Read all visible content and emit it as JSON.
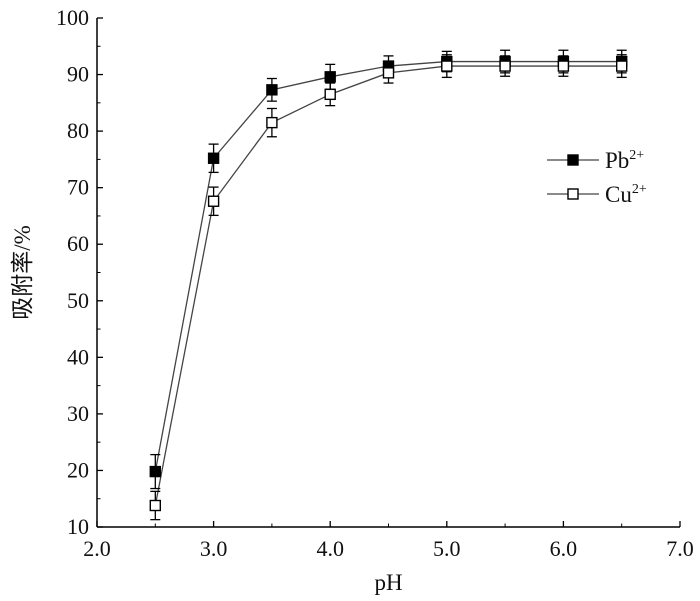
{
  "chart_data": {
    "type": "scatter",
    "title": "",
    "xlabel": "pH",
    "ylabel": "吸附率/%",
    "xlim": [
      2.0,
      7.0
    ],
    "ylim": [
      10,
      100
    ],
    "x_ticks": [
      "2.0",
      "3.0",
      "4.0",
      "5.0",
      "6.0",
      "7.0"
    ],
    "y_ticks": [
      "10",
      "20",
      "30",
      "40",
      "50",
      "60",
      "70",
      "80",
      "90",
      "100"
    ],
    "grid": false,
    "legend_position": "right",
    "x": [
      2.5,
      3.0,
      3.5,
      4.0,
      4.5,
      5.0,
      5.5,
      6.0,
      6.5
    ],
    "series": [
      {
        "name": "Pb",
        "name_sup": "2+",
        "marker": "filled-square",
        "color": "#000000",
        "values": [
          19.8,
          75.2,
          87.3,
          89.6,
          91.5,
          92.3,
          92.3,
          92.3,
          92.3
        ],
        "errors": [
          3.0,
          2.5,
          2.0,
          2.2,
          1.8,
          1.8,
          2.0,
          2.0,
          2.0
        ]
      },
      {
        "name": "Cu",
        "name_sup": "2+",
        "marker": "open-square",
        "color": "#000000",
        "values": [
          13.8,
          67.6,
          81.5,
          86.5,
          90.3,
          91.5,
          91.5,
          91.5,
          91.5
        ],
        "errors": [
          2.5,
          2.5,
          2.5,
          2.0,
          1.8,
          2.0,
          1.8,
          1.8,
          2.0
        ]
      }
    ]
  }
}
